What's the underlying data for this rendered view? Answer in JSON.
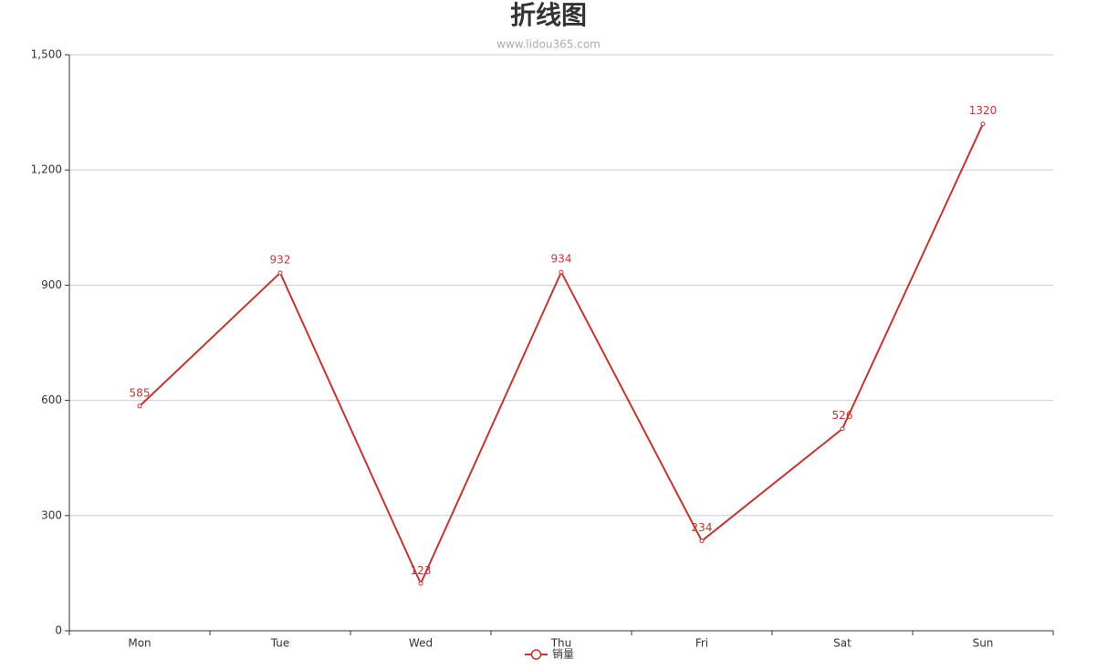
{
  "chart_data": {
    "type": "line",
    "title": "折线图",
    "subtitle": "www.lidou365.com",
    "categories": [
      "Mon",
      "Tue",
      "Wed",
      "Thu",
      "Fri",
      "Sat",
      "Sun"
    ],
    "series": [
      {
        "name": "销量",
        "color": "#c23531",
        "values": [
          585,
          932,
          123,
          934,
          234,
          526,
          1320
        ]
      }
    ],
    "ylim": [
      0,
      1500
    ],
    "yticks": [
      0,
      300,
      600,
      900,
      {
        "value": 1200,
        "label": "1,200"
      },
      {
        "value": 1500,
        "label": "1,500"
      }
    ],
    "grid": true,
    "legend": "bottom"
  }
}
